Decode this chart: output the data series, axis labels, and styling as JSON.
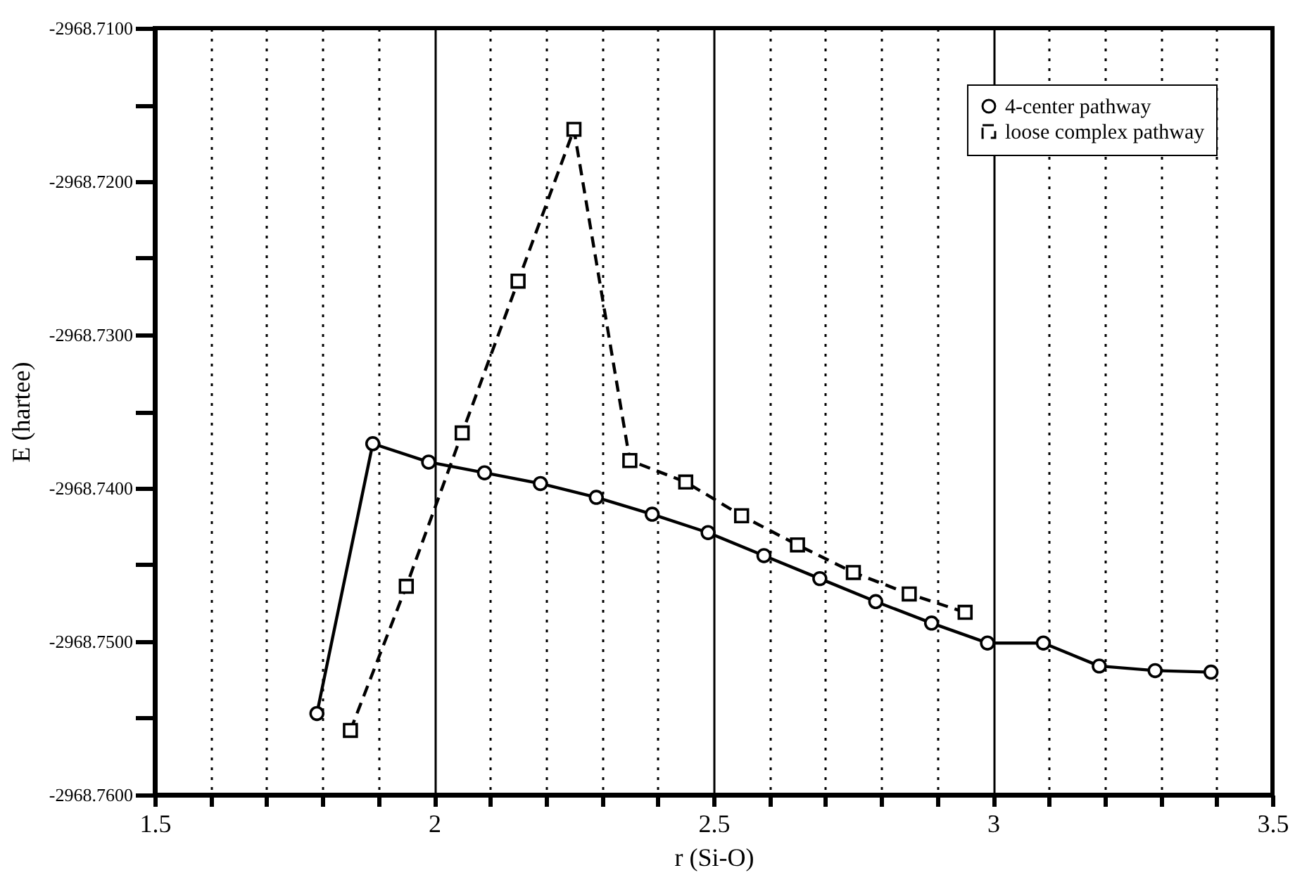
{
  "chart_data": {
    "type": "line",
    "xlabel": "r (Si-O)",
    "ylabel": "E (hartee)",
    "xlim": [
      1.5,
      3.5
    ],
    "ylim": [
      -2968.76,
      -2968.71
    ],
    "xticks": [
      1.5,
      {
        "value": 1.6,
        "label": null
      },
      {
        "value": 1.7,
        "label": null
      },
      {
        "value": 1.8,
        "label": null
      },
      {
        "value": 1.9,
        "label": null
      },
      2,
      {
        "value": 2.1,
        "label": null
      },
      {
        "value": 2.2,
        "label": null
      },
      {
        "value": 2.3,
        "label": null
      },
      {
        "value": 2.4,
        "label": null
      },
      2.5,
      {
        "value": 2.6,
        "label": null
      },
      {
        "value": 2.7,
        "label": null
      },
      {
        "value": 2.8,
        "label": null
      },
      {
        "value": 2.9,
        "label": null
      },
      3,
      {
        "value": 3.1,
        "label": null
      },
      {
        "value": 3.2,
        "label": null
      },
      {
        "value": 3.3,
        "label": null
      },
      {
        "value": 3.4,
        "label": null
      },
      3.5
    ],
    "yticks": [
      {
        "value": -2968.76,
        "label": "-2968.7600"
      },
      {
        "value": -2968.755,
        "label": null
      },
      {
        "value": -2968.75,
        "label": "-2968.7500"
      },
      {
        "value": -2968.745,
        "label": null
      },
      {
        "value": -2968.74,
        "label": "-2968.7400"
      },
      {
        "value": -2968.735,
        "label": null
      },
      {
        "value": -2968.73,
        "label": "-2968.7300"
      },
      {
        "value": -2968.725,
        "label": null
      },
      {
        "value": -2968.72,
        "label": "-2968.7200"
      },
      {
        "value": -2968.715,
        "label": null
      },
      {
        "value": -2968.71,
        "label": "-2968.7100"
      }
    ],
    "grid": "x",
    "legend": "top right",
    "series": [
      {
        "name": "4-center pathway",
        "color": "#000000",
        "marker": "circle",
        "line_style": "solid",
        "x": [
          1.79,
          1.89,
          1.99,
          2.09,
          2.19,
          2.29,
          2.39,
          2.49,
          2.59,
          2.69,
          2.79,
          2.89,
          2.99,
          3.09,
          3.19,
          3.29,
          3.39
        ],
        "values": [
          -2968.7547,
          -2968.7371,
          -2968.7383,
          -2968.739,
          -2968.7397,
          -2968.7406,
          -2968.7417,
          -2968.7429,
          -2968.7444,
          -2968.7459,
          -2968.7474,
          -2968.7488,
          -2968.7501,
          -2968.7501,
          -2968.7516,
          -2968.7519,
          -2968.752
        ]
      },
      {
        "name": "loose complex pathway",
        "color": "#000000",
        "marker": "square",
        "line_style": "dashed",
        "x": [
          1.85,
          1.95,
          2.05,
          2.15,
          2.25,
          2.35,
          2.45,
          2.55,
          2.65,
          2.75,
          2.85,
          2.95
        ],
        "values": [
          -2968.7558,
          -2968.7464,
          -2968.7364,
          -2968.7265,
          -2968.7166,
          -2968.7382,
          -2968.7396,
          -2968.7418,
          -2968.7437,
          -2968.7455,
          -2968.7469,
          -2968.7481
        ]
      }
    ]
  }
}
